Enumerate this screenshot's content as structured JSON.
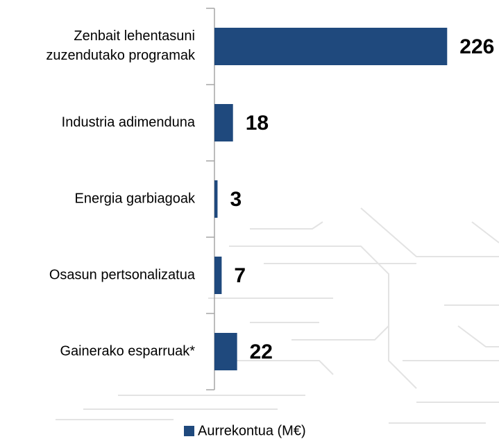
{
  "chart_data": {
    "type": "bar",
    "orientation": "horizontal",
    "categories": [
      "Zenbait lehentasuni zuzendutako programak",
      "Industria adimenduna",
      "Energia garbiagoak",
      "Osasun pertsonalizatua",
      "Gainerako esparruak*"
    ],
    "series": [
      {
        "name": "Aurrekontua (M€)",
        "color": "#1f497d",
        "values": [
          226,
          18,
          3,
          7,
          22
        ]
      }
    ],
    "xlim": [
      0,
      275
    ],
    "legend": "bottom"
  }
}
